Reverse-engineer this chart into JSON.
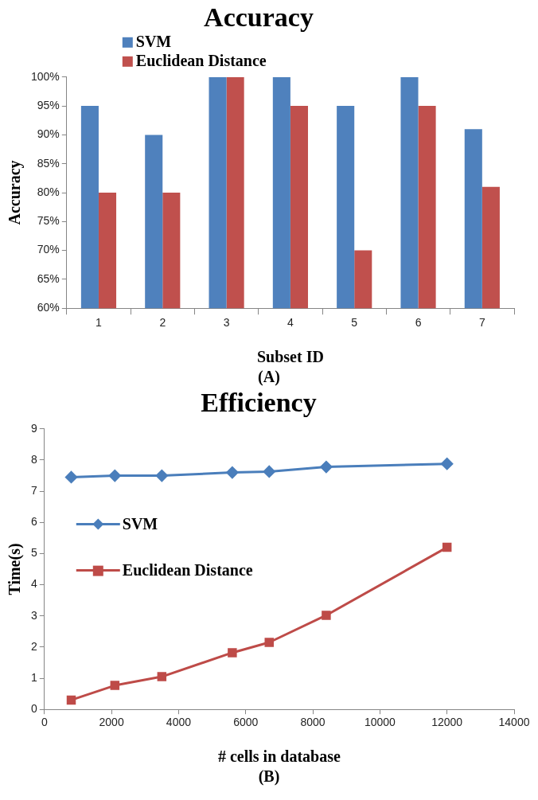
{
  "chart_data": [
    {
      "type": "bar",
      "title": "Accuracy",
      "xlabel": "Subset ID",
      "ylabel": "Accuracy",
      "annotations": [
        "(A)"
      ],
      "categories": [
        "1",
        "2",
        "3",
        "4",
        "5",
        "6",
        "7"
      ],
      "series": [
        {
          "name": "SVM",
          "color": "#4f81bd",
          "values": [
            95,
            90,
            100,
            100,
            95,
            100,
            91
          ]
        },
        {
          "name": "Euclidean Distance",
          "color": "#c0504d",
          "values": [
            80,
            80,
            100,
            95,
            70,
            95,
            81
          ]
        }
      ],
      "ylim": [
        60,
        100
      ],
      "yticks": [
        {
          "value": 60,
          "label": "60%"
        },
        {
          "value": 65,
          "label": "65%"
        },
        {
          "value": 70,
          "label": "70%"
        },
        {
          "value": 75,
          "label": "75%"
        },
        {
          "value": 80,
          "label": "80%"
        },
        {
          "value": 85,
          "label": "85%"
        },
        {
          "value": 90,
          "label": "90%"
        },
        {
          "value": 95,
          "label": "95%"
        },
        {
          "value": 100,
          "label": "100%"
        }
      ],
      "grid": false,
      "legend": "top left"
    },
    {
      "type": "line",
      "title": "Efficiency",
      "xlabel": "# cells in database",
      "ylabel": "Time(s)",
      "annotations": [
        "(B)"
      ],
      "series": [
        {
          "name": "SVM",
          "color": "#4a7ebb",
          "marker": "diamond",
          "x": [
            800,
            2100,
            3500,
            5600,
            6700,
            8400,
            12000
          ],
          "values": [
            7.45,
            7.5,
            7.5,
            7.6,
            7.63,
            7.78,
            7.88
          ]
        },
        {
          "name": "Euclidean Distance",
          "color": "#be4b48",
          "marker": "square",
          "x": [
            800,
            2100,
            3500,
            5600,
            6700,
            8400,
            12000
          ],
          "values": [
            0.3,
            0.77,
            1.05,
            1.82,
            2.15,
            3.02,
            5.2
          ]
        }
      ],
      "xlim": [
        0,
        14000
      ],
      "xticks": [
        0,
        2000,
        4000,
        6000,
        8000,
        10000,
        12000,
        14000
      ],
      "ylim": [
        0,
        9
      ],
      "yticks": [
        0,
        1,
        2,
        3,
        4,
        5,
        6,
        7,
        8,
        9
      ],
      "grid": false,
      "legend": "left"
    }
  ]
}
